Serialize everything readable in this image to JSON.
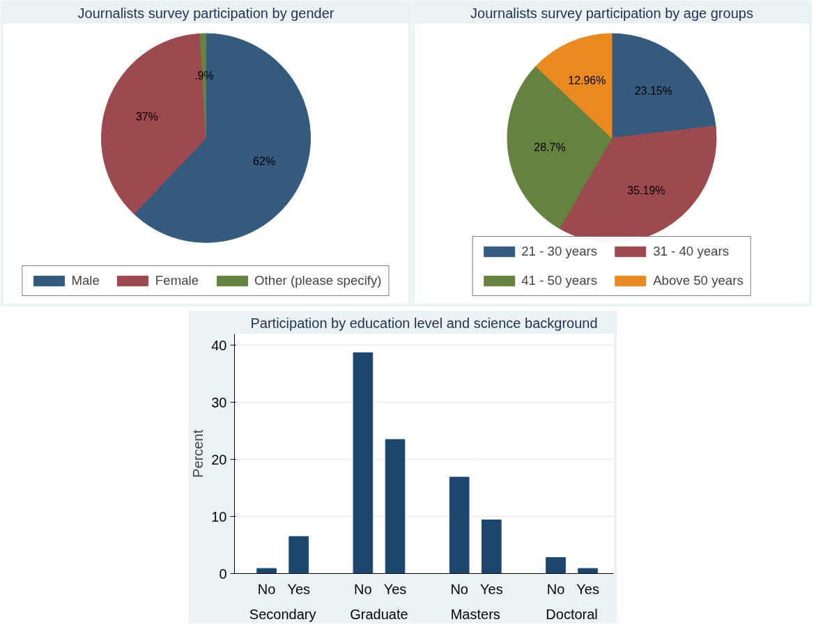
{
  "chart_data": [
    {
      "type": "pie",
      "title": "Journalists survey participation by gender",
      "categories": [
        "Male",
        "Female",
        "Other (please specify)"
      ],
      "values": [
        62,
        37,
        0.9
      ],
      "colors": [
        "#345a7e",
        "#9c4a4f",
        "#66823f"
      ],
      "value_labels": [
        "62%",
        "37%",
        ".9%"
      ],
      "legend": "bottom"
    },
    {
      "type": "pie",
      "title": "Journalists survey participation by age groups",
      "categories": [
        "21 - 30 years",
        "31 - 40 years",
        "41 - 50 years",
        "Above 50 years"
      ],
      "values": [
        23.15,
        35.19,
        28.7,
        12.96
      ],
      "colors": [
        "#345a7e",
        "#9c4a4f",
        "#66823f",
        "#e88a1f"
      ],
      "value_labels": [
        "23.15%",
        "35.19%",
        "28.7%",
        "12.96%"
      ],
      "legend": "bottom"
    },
    {
      "type": "bar",
      "title": "Participation by education level and science background",
      "ylabel": "Percent",
      "categories": [
        "No",
        "Yes",
        "No",
        "Yes",
        "No",
        "Yes",
        "No",
        "Yes"
      ],
      "values": [
        0.9,
        6.5,
        38.7,
        23.5,
        16.9,
        9.4,
        2.8,
        0.9
      ],
      "color": "#1c466e",
      "ylim": [
        0,
        42
      ],
      "yticks": [
        0,
        10,
        20,
        30,
        40
      ],
      "grid": "y",
      "annotations": [
        "Secondary",
        "Graduate",
        "Masters",
        "Doctoral"
      ]
    }
  ]
}
